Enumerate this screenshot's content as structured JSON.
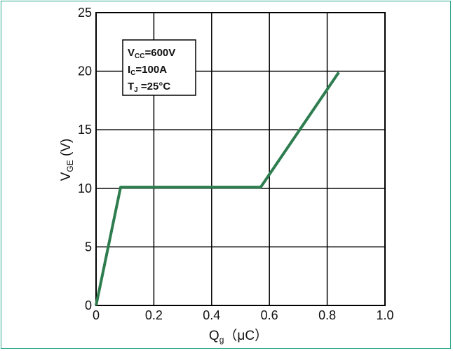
{
  "chart_data": {
    "type": "line",
    "title": "",
    "x_axis": {
      "label": "Q",
      "label_sub": "g",
      "label_unit": "（μC）",
      "ticks": [
        "0",
        "0.2",
        "0.4",
        "0.6",
        "0.8",
        "1.0"
      ],
      "range": [
        0,
        1.0
      ]
    },
    "y_axis": {
      "label": "V",
      "label_sub": "GE",
      "label_unit": " (V)",
      "ticks": [
        "0",
        "5",
        "10",
        "15",
        "20",
        "25"
      ],
      "range": [
        0,
        25
      ]
    },
    "grid": true,
    "series": [
      {
        "color": "#2e7d4f",
        "x": [
          0.0,
          0.085,
          0.57,
          0.84
        ],
        "y": [
          0.0,
          10.1,
          10.1,
          19.9
        ]
      }
    ],
    "annotation": {
      "lines": [
        {
          "main": "V",
          "sub": "CC",
          "rest": "=600V"
        },
        {
          "main": "I",
          "sub": "C",
          "rest": "=100A"
        },
        {
          "main": "T",
          "sub": "J",
          "rest": " =25°C"
        }
      ]
    }
  }
}
